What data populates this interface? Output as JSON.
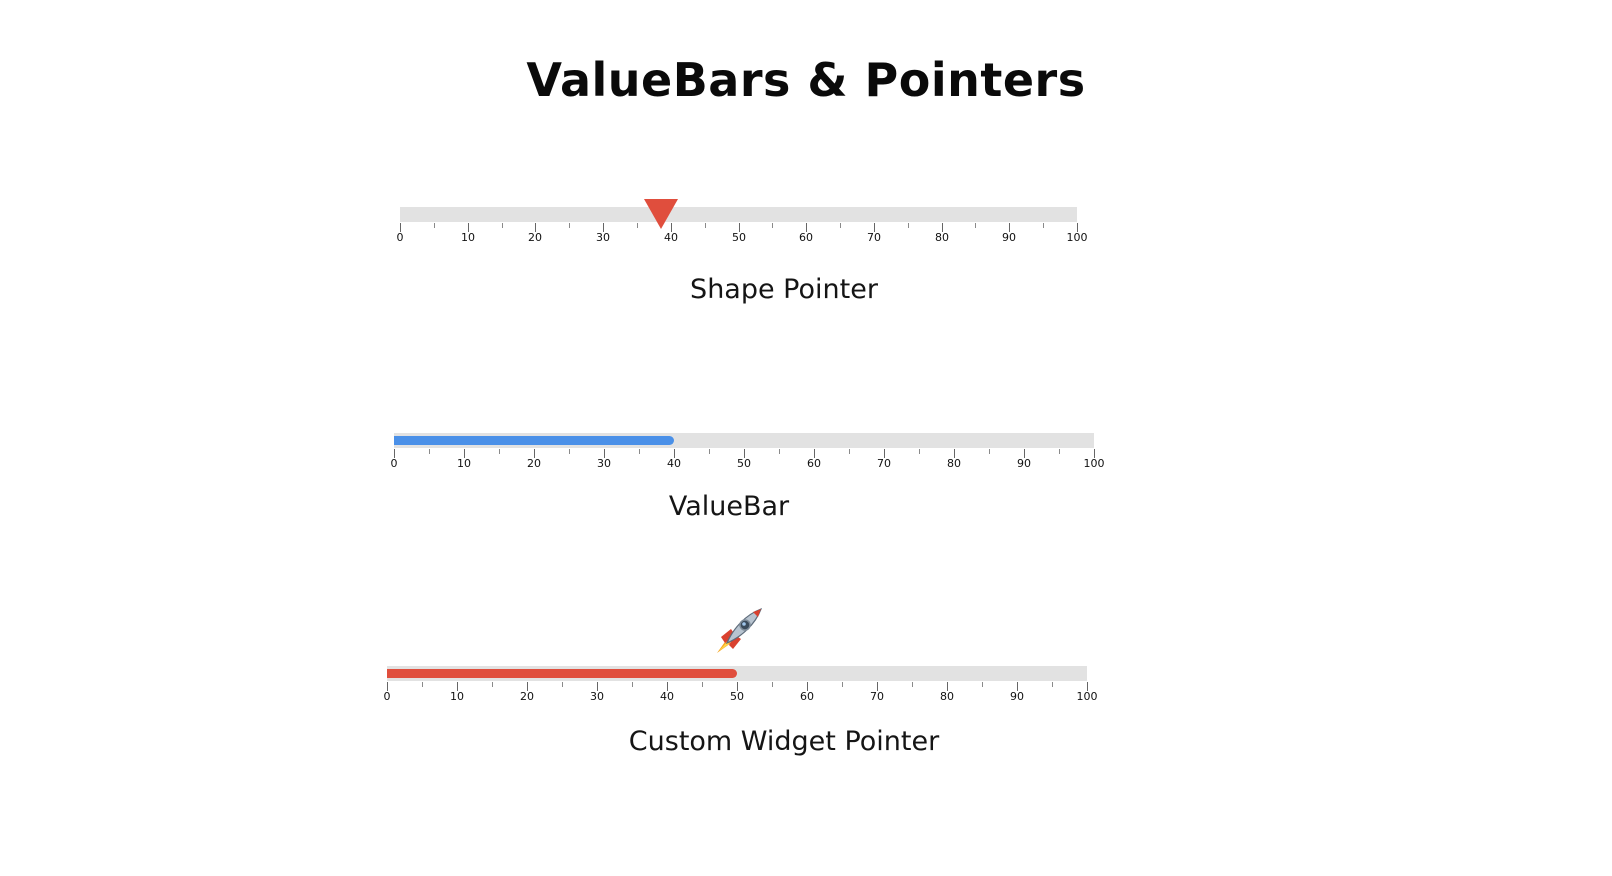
{
  "page": {
    "title": "ValueBars & Pointers"
  },
  "gauges": [
    {
      "id": "shape-pointer",
      "caption": "Shape Pointer",
      "min": 0,
      "max": 100,
      "value": 38.5,
      "pointer": "triangle",
      "color": "#e04e3d",
      "track_color": "#e2e2e2",
      "tick_labels": [
        "0",
        "10",
        "20",
        "30",
        "40",
        "50",
        "60",
        "70",
        "80",
        "90",
        "100"
      ]
    },
    {
      "id": "value-bar",
      "caption": "ValueBar",
      "min": 0,
      "max": 100,
      "value": 40,
      "pointer": "bar",
      "color": "#4a90e8",
      "track_color": "#e2e2e2",
      "tick_labels": [
        "0",
        "10",
        "20",
        "30",
        "40",
        "50",
        "60",
        "70",
        "80",
        "90",
        "100"
      ]
    },
    {
      "id": "custom-widget-pointer",
      "caption": "Custom Widget Pointer",
      "min": 0,
      "max": 100,
      "value": 50,
      "pointer": "rocket-icon",
      "color": "#e04e3d",
      "track_color": "#e2e2e2",
      "tick_labels": [
        "0",
        "10",
        "20",
        "30",
        "40",
        "50",
        "60",
        "70",
        "80",
        "90",
        "100"
      ]
    }
  ]
}
